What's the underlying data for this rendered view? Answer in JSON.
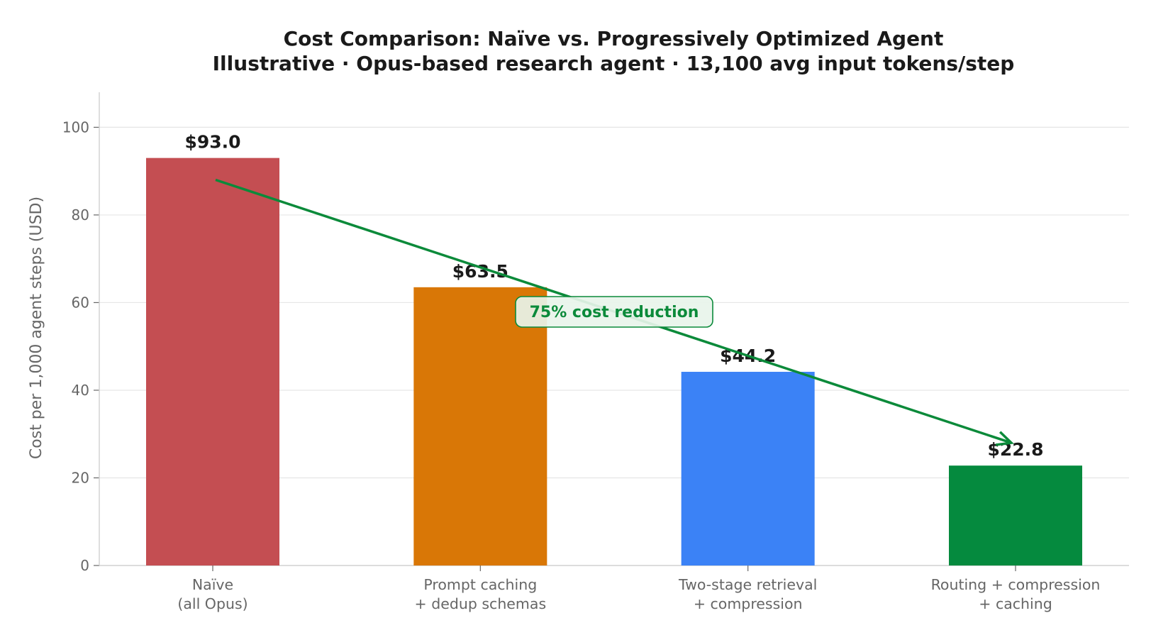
{
  "chart_data": {
    "type": "bar",
    "title": "Cost Comparison: Naïve vs. Progressively Optimized Agent",
    "subtitle": "Illustrative · Opus-based research agent · 13,100 avg input tokens/step",
    "xlabel": "",
    "ylabel": "Cost per 1,000 agent steps (USD)",
    "ylim": [
      0,
      108
    ],
    "yticks": [
      0,
      20,
      40,
      60,
      80,
      100
    ],
    "grid": "y",
    "categories": [
      [
        "Naïve",
        "(all Opus)"
      ],
      [
        "Prompt caching",
        "+ dedup schemas"
      ],
      [
        "Two-stage retrieval",
        "+ compression"
      ],
      [
        "Routing + compression",
        "+ caching"
      ]
    ],
    "values": [
      93.0,
      63.5,
      44.2,
      22.8
    ],
    "value_labels": [
      "$93.0",
      "$63.5",
      "$44.2",
      "$22.8"
    ],
    "colors": [
      "#c44e52",
      "#d97706",
      "#3b82f6",
      "#058a3e"
    ],
    "annotation": {
      "text": "75% cost reduction",
      "color": "#0b8a3a",
      "arrow_from": {
        "category": 0,
        "y": 88
      },
      "arrow_to": {
        "category": 3,
        "y": 28
      }
    }
  }
}
